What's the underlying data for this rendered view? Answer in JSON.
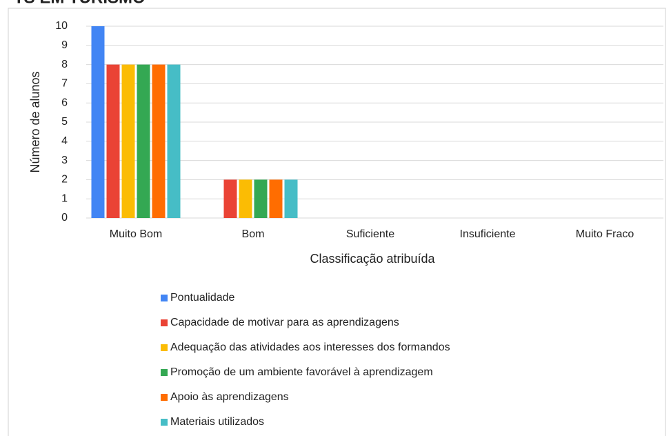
{
  "chart_data": {
    "type": "bar",
    "title": "TS EM TURISMO",
    "x_label": "Classificação atribuída",
    "y_label": "Número de alunos",
    "categories": [
      "Muito Bom",
      "Bom",
      "Suficiente",
      "Insuficiente",
      "Muito Fraco"
    ],
    "series": [
      {
        "name": "Pontualidade",
        "color": "#4285f4",
        "values": [
          10,
          0,
          0,
          0,
          0
        ]
      },
      {
        "name": "Capacidade de motivar para as aprendizagens",
        "color": "#ea4335",
        "values": [
          8,
          2,
          0,
          0,
          0
        ]
      },
      {
        "name": "Adequação das atividades aos interesses dos formandos",
        "color": "#fbbc04",
        "values": [
          8,
          2,
          0,
          0,
          0
        ]
      },
      {
        "name": "Promoção de um ambiente favorável à aprendizagem",
        "color": "#34a853",
        "values": [
          8,
          2,
          0,
          0,
          0
        ]
      },
      {
        "name": "Apoio às aprendizagens",
        "color": "#ff6d01",
        "values": [
          8,
          2,
          0,
          0,
          0
        ]
      },
      {
        "name": "Materiais utilizados",
        "color": "#46bdc6",
        "values": [
          8,
          2,
          0,
          0,
          0
        ]
      }
    ],
    "ylim": [
      0,
      10
    ],
    "yticks": [
      0,
      1,
      2,
      3,
      4,
      5,
      6,
      7,
      8,
      9,
      10
    ],
    "grid": true,
    "legend": "bottom"
  }
}
